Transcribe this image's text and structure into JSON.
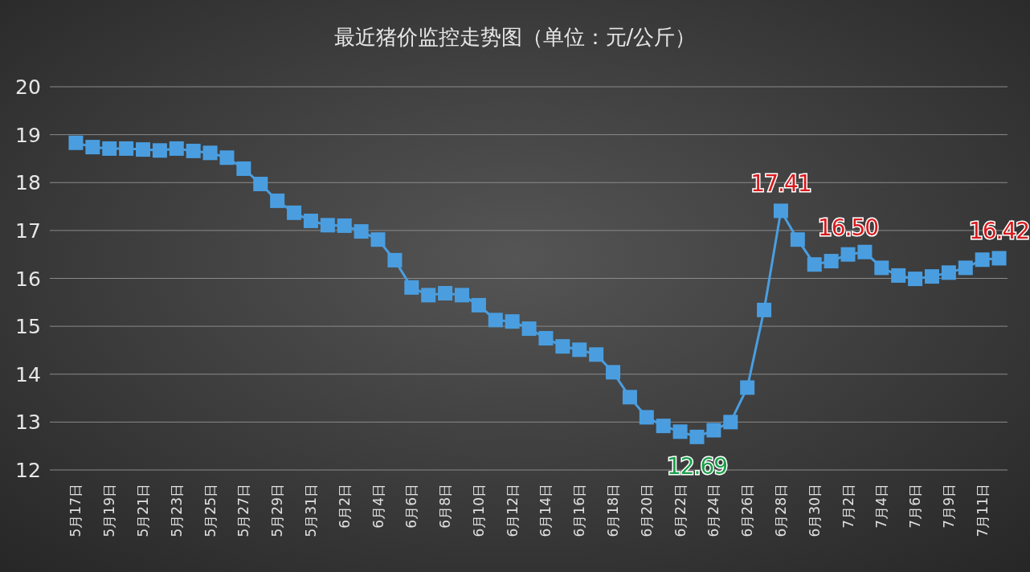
{
  "chart_data": {
    "type": "line",
    "title": "最近猪价监控走势图（单位：元/公斤）",
    "categories": [
      "5月17日",
      null,
      "5月19日",
      null,
      "5月21日",
      null,
      "5月23日",
      null,
      "5月25日",
      null,
      "5月27日",
      null,
      "5月29日",
      null,
      "5月31日",
      null,
      "6月2日",
      null,
      "6月4日",
      null,
      "6月6日",
      null,
      "6月8日",
      null,
      "6月10日",
      null,
      "6月12日",
      null,
      "6月14日",
      null,
      "6月16日",
      null,
      "6月18日",
      null,
      "6月20日",
      null,
      "6月22日",
      null,
      "6月24日",
      null,
      "6月26日",
      null,
      "6月28日",
      null,
      "6月30日",
      null,
      "7月2日",
      null,
      "7月4日",
      null,
      "7月6日",
      null,
      "7月9日",
      null,
      "7月11日",
      null
    ],
    "series": [
      {
        "color": "#4a9ee0",
        "values": [
          18.83,
          18.74,
          18.71,
          18.71,
          18.69,
          18.67,
          18.71,
          18.66,
          18.62,
          18.52,
          18.29,
          17.97,
          17.62,
          17.37,
          17.2,
          17.11,
          17.1,
          16.98,
          16.81,
          16.38,
          15.81,
          15.65,
          15.69,
          15.65,
          15.44,
          15.13,
          15.1,
          14.95,
          14.75,
          14.58,
          14.51,
          14.41,
          14.04,
          13.52,
          13.1,
          12.92,
          12.8,
          12.69,
          12.83,
          13.0,
          13.72,
          15.34,
          17.41,
          16.81,
          16.29,
          16.36,
          16.5,
          16.55,
          16.22,
          16.06,
          15.99,
          16.04,
          16.12,
          16.22,
          16.39,
          16.42
        ],
        "value_labels": [
          null,
          null,
          null,
          null,
          null,
          null,
          null,
          null,
          null,
          null,
          null,
          null,
          null,
          null,
          null,
          null,
          null,
          null,
          null,
          null,
          null,
          null,
          null,
          null,
          null,
          null,
          null,
          null,
          null,
          null,
          null,
          null,
          null,
          null,
          null,
          null,
          null,
          "12.69",
          null,
          null,
          null,
          null,
          "17.41",
          null,
          null,
          null,
          "16.50",
          null,
          null,
          null,
          null,
          null,
          null,
          null,
          null,
          "16.42"
        ]
      }
    ],
    "ylim": [
      12,
      20
    ],
    "yticks": [
      12,
      13,
      14,
      15,
      16,
      17,
      18,
      19,
      20
    ],
    "grid": "y",
    "marker": "square",
    "line_style": "solid"
  }
}
